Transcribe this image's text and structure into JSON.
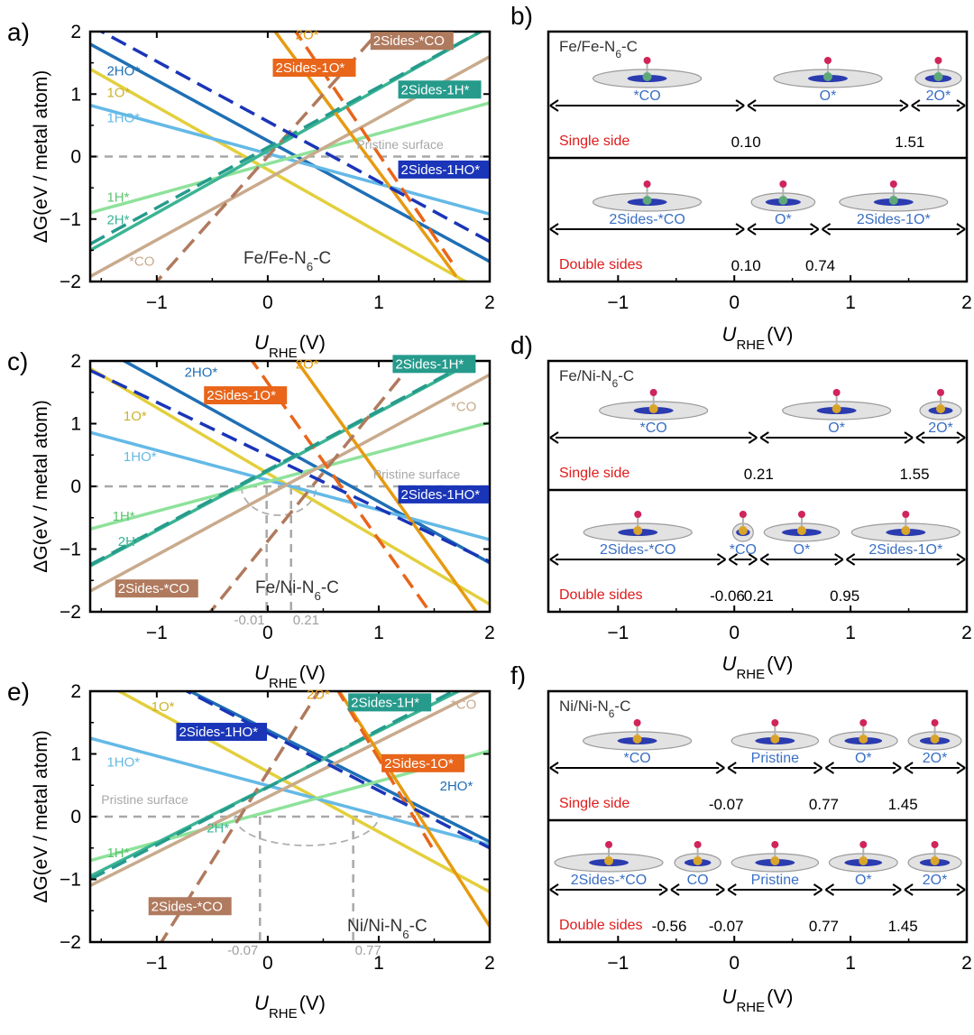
{
  "axis": {
    "xlabel_main": "U",
    "xlabel_sub": "RHE",
    "xlabel_unit": "(V)",
    "ylabel": "ΔG(eV / metal atom)",
    "xticks": [
      "−1",
      "0",
      "1",
      "2"
    ],
    "yticks": [
      "−2",
      "−1",
      "0",
      "1",
      "2"
    ]
  },
  "chart_data": [
    {
      "panel": "a)",
      "type": "line",
      "system": {
        "a": "Fe/Fe-N",
        "sub": "6",
        "b": "-C"
      },
      "xlim": [
        -1.6,
        2.0
      ],
      "ylim": [
        -2,
        2
      ],
      "series": [
        {
          "name": "2HO*",
          "color": "#1f6fb5",
          "dash": false,
          "x": [
            -1.6,
            2.0
          ],
          "y": [
            1.8,
            -1.68
          ]
        },
        {
          "name": "1O*",
          "color": "#e3cf3c",
          "dash": false,
          "x": [
            -1.6,
            2.0
          ],
          "y": [
            1.4,
            -2.22
          ]
        },
        {
          "name": "1HO*",
          "color": "#64b9e6",
          "dash": false,
          "x": [
            -1.6,
            2.0
          ],
          "y": [
            0.82,
            -0.92
          ]
        },
        {
          "name": "1H*",
          "color": "#8ee29b",
          "dash": false,
          "x": [
            -1.6,
            2.0
          ],
          "y": [
            -0.9,
            0.86
          ]
        },
        {
          "name": "2H*",
          "color": "#3bb494",
          "dash": false,
          "x": [
            -1.6,
            2.0
          ],
          "y": [
            -1.5,
            2.08
          ]
        },
        {
          "name": "*CO",
          "color": "#c9aa8c",
          "dash": false,
          "x": [
            -1.6,
            2.0
          ],
          "y": [
            -1.92,
            1.6
          ]
        },
        {
          "name": "2O*",
          "color": "#e69a10",
          "dash": false,
          "x": [
            -0.1,
            1.7
          ],
          "y": [
            2.4,
            -1.92
          ]
        },
        {
          "name": "2Sides-1O*",
          "color": "#e8651a",
          "dash": true,
          "x": [
            0.1,
            1.7
          ],
          "y": [
            2.4,
            -1.8
          ]
        },
        {
          "name": "2Sides-*CO",
          "color": "#b07a5e",
          "dash": true,
          "x": [
            -1.2,
            1.2
          ],
          "y": [
            -2.4,
            2.4
          ]
        },
        {
          "name": "2Sides-1H*",
          "color": "#269b8c",
          "dash": true,
          "x": [
            -1.6,
            2.0
          ],
          "y": [
            -1.4,
            2.08
          ]
        },
        {
          "name": "2Sides-1HO*",
          "color": "#1a35b8",
          "dash": true,
          "x": [
            -1.6,
            2.0
          ],
          "y": [
            2.1,
            -1.36
          ]
        }
      ],
      "annotations": [
        "Pristine surface"
      ],
      "markers": []
    },
    {
      "panel": "c)",
      "type": "line",
      "system": {
        "a": "Fe/Ni-N",
        "sub": "6",
        "b": "-C"
      },
      "xlim": [
        -1.6,
        2.0
      ],
      "ylim": [
        -2,
        2
      ],
      "series": [
        {
          "name": "2HO*",
          "color": "#1f6fb5",
          "dash": false,
          "x": [
            -1.6,
            2.0
          ],
          "y": [
            2.3,
            -1.22
          ]
        },
        {
          "name": "1O*",
          "color": "#e3cf3c",
          "dash": false,
          "x": [
            -1.6,
            2.0
          ],
          "y": [
            1.88,
            -1.88
          ]
        },
        {
          "name": "1HO*",
          "color": "#64b9e6",
          "dash": false,
          "x": [
            -1.6,
            2.0
          ],
          "y": [
            0.86,
            -0.85
          ]
        },
        {
          "name": "1H*",
          "color": "#8ee29b",
          "dash": false,
          "x": [
            -1.6,
            2.0
          ],
          "y": [
            -0.68,
            1.02
          ]
        },
        {
          "name": "2H*",
          "color": "#3bb494",
          "dash": false,
          "x": [
            -1.6,
            2.0
          ],
          "y": [
            -1.27,
            2.13
          ]
        },
        {
          "name": "*CO",
          "color": "#c9aa8c",
          "dash": false,
          "x": [
            -1.6,
            2.0
          ],
          "y": [
            -1.67,
            1.78
          ]
        },
        {
          "name": "2O*",
          "color": "#e69a10",
          "dash": false,
          "x": [
            0.1,
            1.9
          ],
          "y": [
            2.4,
            -2.05
          ]
        },
        {
          "name": "2Sides-1O*",
          "color": "#e8651a",
          "dash": true,
          "x": [
            -0.3,
            1.5
          ],
          "y": [
            2.4,
            -2.1
          ]
        },
        {
          "name": "2Sides-*CO",
          "color": "#b07a5e",
          "dash": true,
          "x": [
            -0.7,
            1.5
          ],
          "y": [
            -2.4,
            2.4
          ]
        },
        {
          "name": "2Sides-1H*",
          "color": "#269b8c",
          "dash": true,
          "x": [
            -1.6,
            2.0
          ],
          "y": [
            -1.25,
            2.15
          ]
        },
        {
          "name": "2Sides-1HO*",
          "color": "#1a35b8",
          "dash": true,
          "x": [
            -1.6,
            2.0
          ],
          "y": [
            1.85,
            -1.2
          ]
        }
      ],
      "annotations": [
        "Pristine surface"
      ],
      "markers": [
        {
          "x": -0.01,
          "label": "-0.01"
        },
        {
          "x": 0.21,
          "label": "0.21"
        }
      ]
    },
    {
      "panel": "e)",
      "type": "line",
      "system": {
        "a": "Ni/Ni-N",
        "sub": "6",
        "b": "-C"
      },
      "xlim": [
        -1.6,
        2.0
      ],
      "ylim": [
        -2,
        2
      ],
      "series": [
        {
          "name": "2HO*",
          "color": "#1f6fb5",
          "dash": false,
          "x": [
            -1.6,
            2.0
          ],
          "y": [
            2.8,
            -0.4
          ]
        },
        {
          "name": "1O*",
          "color": "#e3cf3c",
          "dash": false,
          "x": [
            -1.6,
            2.0
          ],
          "y": [
            2.25,
            -1.2
          ]
        },
        {
          "name": "1HO*",
          "color": "#64b9e6",
          "dash": false,
          "x": [
            -1.6,
            2.0
          ],
          "y": [
            1.25,
            -0.45
          ]
        },
        {
          "name": "1H*",
          "color": "#8ee29b",
          "dash": false,
          "x": [
            -1.6,
            2.0
          ],
          "y": [
            -0.7,
            1.05
          ]
        },
        {
          "name": "2H*",
          "color": "#3bb494",
          "dash": false,
          "x": [
            -1.6,
            2.0
          ],
          "y": [
            -0.95,
            2.25
          ]
        },
        {
          "name": "*CO",
          "color": "#c9aa8c",
          "dash": false,
          "x": [
            -1.6,
            2.0
          ],
          "y": [
            -1.1,
            2.08
          ]
        },
        {
          "name": "2O*",
          "color": "#e69a10",
          "dash": false,
          "x": [
            0.5,
            2.0
          ],
          "y": [
            2.4,
            -1.75
          ]
        },
        {
          "name": "2Sides-1O*",
          "color": "#e8651a",
          "dash": true,
          "x": [
            0.5,
            1.5
          ],
          "y": [
            2.4,
            -0.55
          ]
        },
        {
          "name": "2Sides-*CO",
          "color": "#b07a5e",
          "dash": true,
          "x": [
            -1.1,
            0.6
          ],
          "y": [
            -2.4,
            2.4
          ]
        },
        {
          "name": "2Sides-1H*",
          "color": "#269b8c",
          "dash": true,
          "x": [
            -1.6,
            2.0
          ],
          "y": [
            -1.0,
            2.3
          ]
        },
        {
          "name": "2Sides-1HO*",
          "color": "#1a35b8",
          "dash": true,
          "x": [
            -1.6,
            2.0
          ],
          "y": [
            2.8,
            -0.5
          ]
        }
      ],
      "annotations": [
        "Pristine surface"
      ],
      "markers": [
        {
          "x": -0.07,
          "label": "-0.07"
        },
        {
          "x": 0.77,
          "label": "0.77"
        }
      ]
    },
    {
      "panel": "b)",
      "type": "phase-diagram",
      "system": {
        "a": "Fe/Fe-N",
        "sub": "6",
        "b": "-C"
      },
      "rows": [
        {
          "label": "Single side",
          "boundaries": [
            {
              "x": 0.1,
              "text": "0.10"
            },
            {
              "x": 1.51,
              "text": "1.51"
            }
          ],
          "regions": [
            "*CO",
            "O*",
            "2O*"
          ]
        },
        {
          "label": "Double sides",
          "boundaries": [
            {
              "x": 0.1,
              "text": "0.10"
            },
            {
              "x": 0.74,
              "text": "0.74"
            }
          ],
          "regions": [
            "2Sides-*CO",
            "O*",
            "2Sides-1O*"
          ]
        }
      ]
    },
    {
      "panel": "d)",
      "type": "phase-diagram",
      "system": {
        "a": "Fe/Ni-N",
        "sub": "6",
        "b": "-C"
      },
      "rows": [
        {
          "label": "Single side",
          "boundaries": [
            {
              "x": 0.21,
              "text": "0.21"
            },
            {
              "x": 1.55,
              "text": "1.55"
            }
          ],
          "regions": [
            "*CO",
            "O*",
            "2O*"
          ]
        },
        {
          "label": "Double sides",
          "boundaries": [
            {
              "x": -0.06,
              "text": "-0.06"
            },
            {
              "x": 0.21,
              "text": "0.21"
            },
            {
              "x": 0.95,
              "text": "0.95"
            }
          ],
          "regions": [
            "2Sides-*CO",
            "*CO",
            "O*",
            "2Sides-1O*"
          ]
        }
      ]
    },
    {
      "panel": "f)",
      "type": "phase-diagram",
      "system": {
        "a": "Ni/Ni-N",
        "sub": "6",
        "b": "-C"
      },
      "rows": [
        {
          "label": "Single side",
          "boundaries": [
            {
              "x": -0.07,
              "text": "-0.07"
            },
            {
              "x": 0.77,
              "text": "0.77"
            },
            {
              "x": 1.45,
              "text": "1.45"
            }
          ],
          "regions": [
            "*CO",
            "Pristine",
            "O*",
            "2O*"
          ]
        },
        {
          "label": "Double sides",
          "boundaries": [
            {
              "x": -0.56,
              "text": "-0.56"
            },
            {
              "x": -0.07,
              "text": "-0.07"
            },
            {
              "x": 0.77,
              "text": "0.77"
            },
            {
              "x": 1.45,
              "text": "1.45"
            }
          ],
          "regions": [
            "2Sides-*CO",
            "CO",
            "Pristine",
            "O*",
            "2O*"
          ]
        }
      ]
    }
  ]
}
